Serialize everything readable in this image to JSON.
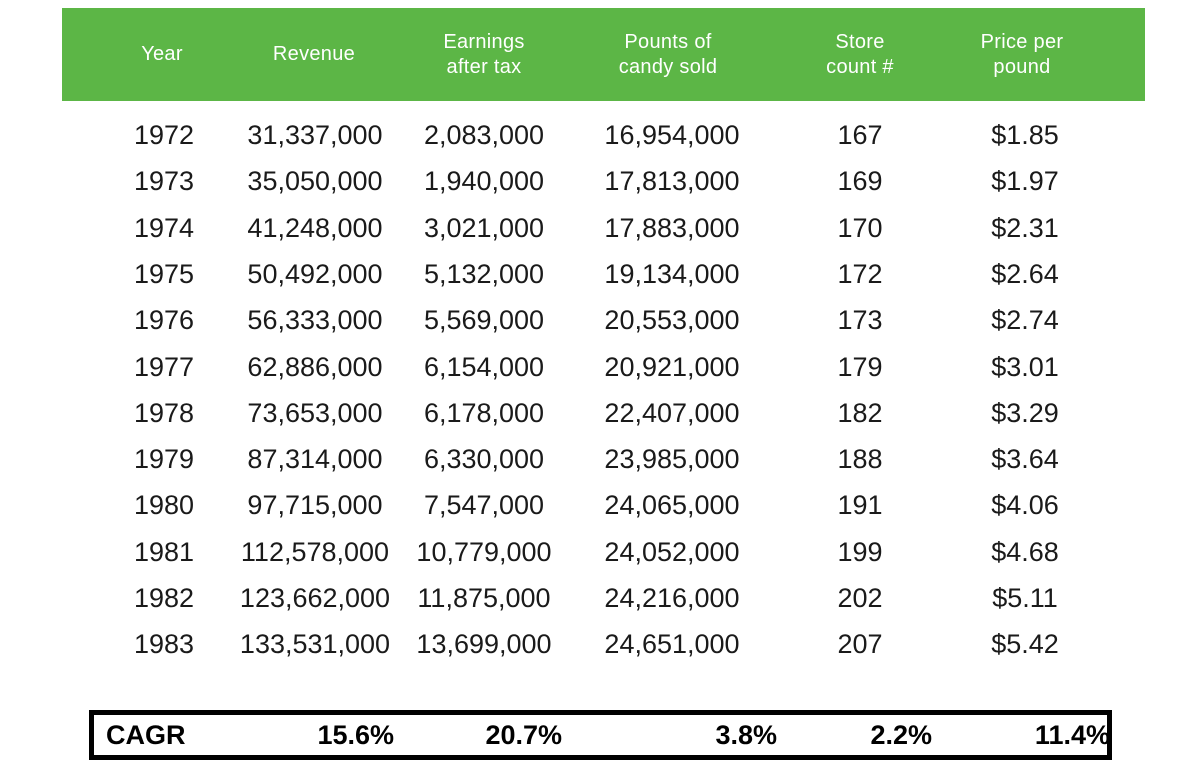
{
  "chart_data": {
    "type": "table",
    "columns": [
      "Year",
      "Revenue",
      "Earnings\nafter tax",
      "Pounts of\ncandy sold",
      "Store\ncount #",
      "Price per\npound"
    ],
    "rows": [
      [
        "1972",
        "31,337,000",
        "2,083,000",
        "16,954,000",
        "167",
        "$1.85"
      ],
      [
        "1973",
        "35,050,000",
        "1,940,000",
        "17,813,000",
        "169",
        "$1.97"
      ],
      [
        "1974",
        "41,248,000",
        "3,021,000",
        "17,883,000",
        "170",
        "$2.31"
      ],
      [
        "1975",
        "50,492,000",
        "5,132,000",
        "19,134,000",
        "172",
        "$2.64"
      ],
      [
        "1976",
        "56,333,000",
        "5,569,000",
        "20,553,000",
        "173",
        "$2.74"
      ],
      [
        "1977",
        "62,886,000",
        "6,154,000",
        "20,921,000",
        "179",
        "$3.01"
      ],
      [
        "1978",
        "73,653,000",
        "6,178,000",
        "22,407,000",
        "182",
        "$3.29"
      ],
      [
        "1979",
        "87,314,000",
        "6,330,000",
        "23,985,000",
        "188",
        "$3.64"
      ],
      [
        "1980",
        "97,715,000",
        "7,547,000",
        "24,065,000",
        "191",
        "$4.06"
      ],
      [
        "1981",
        "112,578,000",
        "10,779,000",
        "24,052,000",
        "199",
        "$4.68"
      ],
      [
        "1982",
        "123,662,000",
        "11,875,000",
        "24,216,000",
        "202",
        "$5.11"
      ],
      [
        "1983",
        "133,531,000",
        "13,699,000",
        "24,651,000",
        "207",
        "$5.42"
      ]
    ],
    "cagr": {
      "label": "CAGR",
      "values": [
        "15.6%",
        "20.7%",
        "3.8%",
        "2.2%",
        "11.4%"
      ]
    }
  },
  "colors": {
    "header_bg": "#5cb646",
    "header_text": "#ffffff",
    "body_text": "#1a1a1a",
    "cagr_border": "#000000"
  }
}
